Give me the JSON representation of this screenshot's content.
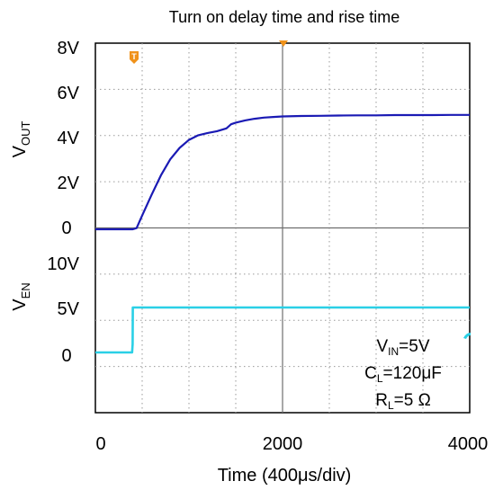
{
  "chart_data": {
    "type": "line",
    "title": "Turn on delay time and rise time",
    "xlabel": "Time (400μs/div)",
    "x_ticks": [
      "0",
      "2000",
      "4000"
    ],
    "xlim": [
      0,
      4000
    ],
    "grid": true,
    "trigger_marker": "T",
    "panels": [
      {
        "ylabel": {
          "main": "V",
          "sub": "OUT"
        },
        "y_ticks": [
          "8V",
          "6V",
          "4V",
          "2V",
          "0"
        ],
        "ylim": [
          0,
          8
        ],
        "color": "#1a1ab4",
        "series": [
          {
            "x": [
              0,
              400,
              440,
              500,
              600,
              700,
              800,
              900,
              1000,
              1100,
              1200,
              1300,
              1400,
              1450,
              1500,
              1600,
              1700,
              1800,
              1900,
              2000,
              2200,
              2400,
              2600,
              2800,
              3000,
              3200,
              3400,
              3600,
              3800,
              4000
            ],
            "y": [
              0,
              0,
              0.05,
              0.6,
              1.5,
              2.35,
              3.05,
              3.55,
              3.9,
              4.1,
              4.2,
              4.28,
              4.4,
              4.58,
              4.65,
              4.75,
              4.82,
              4.87,
              4.9,
              4.92,
              4.94,
              4.95,
              4.96,
              4.97,
              4.97,
              4.98,
              4.98,
              4.98,
              4.99,
              4.99
            ]
          }
        ]
      },
      {
        "ylabel": {
          "main": "V",
          "sub": "EN"
        },
        "y_ticks": [
          "10V",
          "5V",
          "0"
        ],
        "ylim": [
          -5,
          10
        ],
        "color": "#2ad0e6",
        "series": [
          {
            "x": [
              0,
              392,
              398,
              400,
              420,
              800,
              1600,
              2400,
              3200,
              4000
            ],
            "y": [
              0.1,
              0.1,
              1.0,
              5.0,
              5.0,
              5.0,
              5.0,
              5.0,
              5.0,
              5.0
            ]
          }
        ]
      }
    ],
    "annotations": [
      {
        "main": "V",
        "sub": "IN",
        "rest": "=5V"
      },
      {
        "main": "C",
        "sub": "L",
        "rest": "=120μF"
      },
      {
        "main": "R",
        "sub": "L",
        "rest": "=5 Ω"
      }
    ]
  }
}
